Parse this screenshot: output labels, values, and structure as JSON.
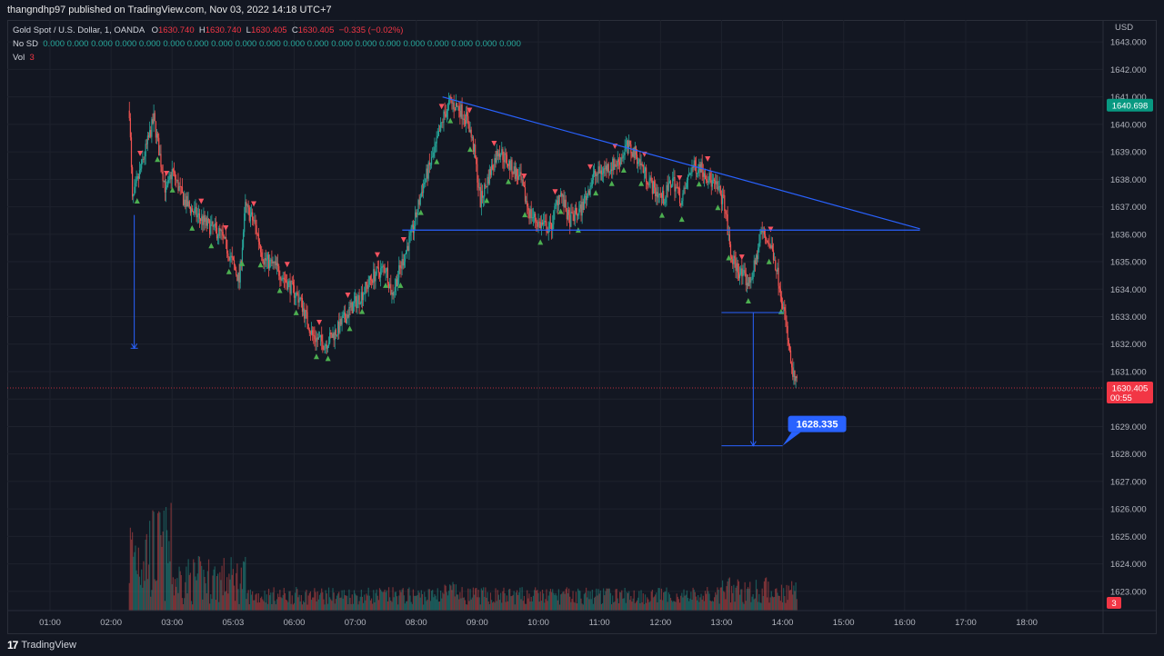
{
  "header": {
    "published": "thangndhp97 published on TradingView.com, Nov 03, 2022 14:18 UTC+7"
  },
  "legend": {
    "symbol": "Gold Spot / U.S. Dollar, 1, OANDA",
    "o_label": "O",
    "o_value": "1630.740",
    "h_label": "H",
    "h_value": "1630.740",
    "l_label": "L",
    "l_value": "1630.405",
    "c_label": "C",
    "c_value": "1630.405",
    "change": "−0.335 (−0.02%)",
    "sd_label": "No SD",
    "sd_values": "0.000 0.000 0.000 0.000 0.000 0.000 0.000 0.000 0.000 0.000 0.000 0.000 0.000 0.000 0.000 0.000 0.000 0.000 0.000 0.000",
    "vol_label": "Vol",
    "vol_value": "3"
  },
  "footer": {
    "brand": "TradingView",
    "logo": "17"
  },
  "colors": {
    "background": "#131722",
    "up": "#26a69a",
    "down": "#ef5350",
    "trendline": "#2962ff",
    "buy_marker": "#4caf50",
    "sell_marker": "#f7525f",
    "price_tag_current": "#f23645",
    "price_tag_high": "#089981",
    "callout": "#2962ff"
  },
  "chart_data": {
    "type": "candlestick",
    "currency": "USD",
    "y_range": [
      1622.3,
      1643.8
    ],
    "y_ticks": [
      "1643.000",
      "1642.000",
      "1641.000",
      "1640.000",
      "1639.000",
      "1638.000",
      "1637.000",
      "1636.000",
      "1635.000",
      "1634.000",
      "1633.000",
      "1632.000",
      "1631.000",
      "1630.000",
      "1629.000",
      "1628.000",
      "1627.000",
      "1626.000",
      "1625.000",
      "1624.000",
      "1623.000"
    ],
    "y_tick_values": [
      1643,
      1642,
      1641,
      1640,
      1639,
      1638,
      1637,
      1636,
      1635,
      1634,
      1633,
      1632,
      1631,
      1630,
      1629,
      1628,
      1627,
      1626,
      1625,
      1624,
      1623
    ],
    "x_ticks": [
      "01:00",
      "02:00",
      "03:00",
      "05:03",
      "06:00",
      "07:00",
      "08:00",
      "09:00",
      "10:00",
      "11:00",
      "12:00",
      "13:00",
      "14:00",
      "15:00",
      "16:00",
      "17:00",
      "18:00"
    ],
    "x_tick_hours": [
      1,
      2,
      3,
      4,
      5,
      6,
      7,
      8,
      9,
      10,
      11,
      12,
      13,
      14,
      15,
      16,
      17
    ],
    "x_range_hours": [
      0.3,
      18.25
    ],
    "price_path": [
      [
        2.3,
        1640.5
      ],
      [
        2.35,
        1637.2
      ],
      [
        2.5,
        1638.5
      ],
      [
        2.7,
        1640.2
      ],
      [
        2.9,
        1637.5
      ],
      [
        3.0,
        1638.3
      ],
      [
        3.2,
        1637.2
      ],
      [
        3.4,
        1636.7
      ],
      [
        3.6,
        1636.3
      ],
      [
        3.8,
        1636.0
      ],
      [
        3.95,
        1635.2
      ],
      [
        4.1,
        1634.3
      ],
      [
        4.2,
        1637.0
      ],
      [
        4.35,
        1636.4
      ],
      [
        4.5,
        1635.1
      ],
      [
        4.7,
        1634.8
      ],
      [
        4.9,
        1634.2
      ],
      [
        5.1,
        1633.6
      ],
      [
        5.3,
        1632.3
      ],
      [
        5.5,
        1632.0
      ],
      [
        5.7,
        1632.5
      ],
      [
        5.9,
        1633.2
      ],
      [
        6.1,
        1633.8
      ],
      [
        6.3,
        1634.5
      ],
      [
        6.5,
        1634.8
      ],
      [
        6.6,
        1633.8
      ],
      [
        6.8,
        1635.2
      ],
      [
        6.95,
        1636.2
      ],
      [
        7.1,
        1637.7
      ],
      [
        7.3,
        1639.0
      ],
      [
        7.45,
        1640.3
      ],
      [
        7.55,
        1640.8
      ],
      [
        7.7,
        1640.6
      ],
      [
        7.85,
        1640.1
      ],
      [
        7.95,
        1639.0
      ],
      [
        8.05,
        1637.2
      ],
      [
        8.2,
        1638.2
      ],
      [
        8.35,
        1639.1
      ],
      [
        8.5,
        1638.6
      ],
      [
        8.7,
        1638.0
      ],
      [
        8.85,
        1636.8
      ],
      [
        9.0,
        1636.4
      ],
      [
        9.2,
        1636.2
      ],
      [
        9.35,
        1637.6
      ],
      [
        9.5,
        1636.5
      ],
      [
        9.7,
        1636.9
      ],
      [
        9.9,
        1638.1
      ],
      [
        10.1,
        1638.4
      ],
      [
        10.3,
        1638.6
      ],
      [
        10.45,
        1639.2
      ],
      [
        10.6,
        1638.9
      ],
      [
        10.75,
        1638.2
      ],
      [
        10.9,
        1637.6
      ],
      [
        11.05,
        1637.3
      ],
      [
        11.2,
        1638.0
      ],
      [
        11.35,
        1637.2
      ],
      [
        11.5,
        1638.4
      ],
      [
        11.65,
        1638.5
      ],
      [
        11.8,
        1638.0
      ],
      [
        11.95,
        1637.6
      ],
      [
        12.05,
        1637.1
      ],
      [
        12.15,
        1635.2
      ],
      [
        12.3,
        1634.6
      ],
      [
        12.45,
        1634.2
      ],
      [
        12.55,
        1634.9
      ],
      [
        12.65,
        1636.1
      ],
      [
        12.75,
        1635.8
      ],
      [
        12.85,
        1635.3
      ],
      [
        12.95,
        1634.2
      ],
      [
        13.05,
        1632.8
      ],
      [
        13.15,
        1631.0
      ],
      [
        13.25,
        1630.4
      ]
    ],
    "volume_max": 6,
    "trendlines": [
      {
        "from": [
          7.43,
          1641.0
        ],
        "to": [
          15.25,
          1636.2
        ]
      },
      {
        "from": [
          6.77,
          1636.15
        ],
        "to": [
          15.25,
          1636.15
        ]
      }
    ],
    "measures": [
      {
        "x": 2.38,
        "from": 1636.7,
        "to": 1631.85
      },
      {
        "x": 12.52,
        "from": 1633.15,
        "to": 1628.3,
        "band": [
          12.0,
          13.0
        ]
      }
    ],
    "markers_up_count": 38,
    "markers_down_count": 22,
    "callout": {
      "label": "1628.335",
      "price": 1628.335,
      "anchor_hour": 13.0
    },
    "current_price": {
      "label": "1630.405",
      "countdown": "00:55",
      "price": 1630.405
    },
    "high_price": {
      "label": "1640.698",
      "price": 1640.698
    },
    "volume_label": "3"
  }
}
